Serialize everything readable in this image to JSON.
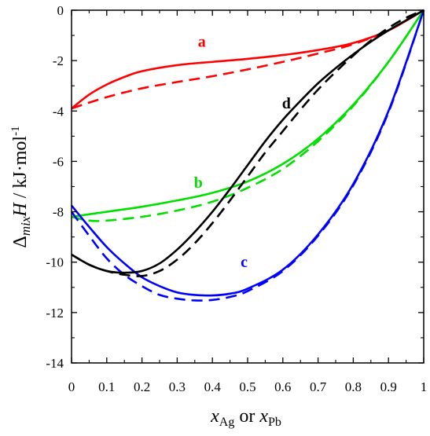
{
  "chart_data": {
    "type": "line",
    "xlabel_parts": {
      "x1": "x",
      "sub1": "Ag",
      "mid": " or ",
      "x2": "x",
      "sub2": "Pb"
    },
    "ylabel_parts": {
      "delta": "Δ",
      "sub": "mix",
      "h": "H",
      "rest": " / kJ·mol",
      "sup": "-1"
    },
    "xlim": [
      0,
      1
    ],
    "ylim": [
      -14,
      0
    ],
    "xticks": [
      0,
      0.1,
      0.2,
      0.3,
      0.4,
      0.5,
      0.6,
      0.7,
      0.8,
      0.9,
      1
    ],
    "xtick_labels": [
      "0",
      "0.1",
      "0.2",
      "0.3",
      "0.4",
      "0.5",
      "0.6",
      "0.7",
      "0.8",
      "0.9",
      "1"
    ],
    "yticks": [
      0,
      -2,
      -4,
      -6,
      -8,
      -10,
      -12,
      -14
    ],
    "ytick_labels": [
      "0",
      "-2",
      "-4",
      "-6",
      "-8",
      "-10",
      "-12",
      "-14"
    ],
    "grid": false,
    "series": [
      {
        "name": "a",
        "color": "#ff0000",
        "style": "solid",
        "label_at": [
          0.37,
          -1.45
        ],
        "x": [
          0,
          0.05,
          0.1,
          0.15,
          0.2,
          0.3,
          0.4,
          0.5,
          0.6,
          0.7,
          0.8,
          0.9,
          1
        ],
        "y": [
          -3.9,
          -3.35,
          -2.95,
          -2.65,
          -2.42,
          -2.18,
          -2.05,
          -1.93,
          -1.78,
          -1.58,
          -1.3,
          -0.8,
          0
        ]
      },
      {
        "name": "",
        "color": "#ff0000",
        "style": "dashed",
        "x": [
          0,
          0.1,
          0.2,
          0.3,
          0.4,
          0.5,
          0.6,
          0.7,
          0.8,
          0.9,
          1
        ],
        "y": [
          -3.9,
          -3.45,
          -3.1,
          -2.85,
          -2.62,
          -2.35,
          -2.05,
          -1.72,
          -1.35,
          -0.8,
          0
        ]
      },
      {
        "name": "b",
        "color": "#00e000",
        "style": "solid",
        "label_at": [
          0.36,
          -7.05
        ],
        "x": [
          0,
          0.1,
          0.2,
          0.3,
          0.4,
          0.5,
          0.6,
          0.7,
          0.8,
          0.9,
          1
        ],
        "y": [
          -8.2,
          -8.0,
          -7.8,
          -7.55,
          -7.25,
          -6.8,
          -6.1,
          -5.1,
          -3.75,
          -2.05,
          0
        ]
      },
      {
        "name": "",
        "color": "#00e000",
        "style": "dashed",
        "x": [
          0,
          0.05,
          0.1,
          0.2,
          0.3,
          0.4,
          0.5,
          0.6,
          0.7,
          0.8,
          0.9,
          1
        ],
        "y": [
          -8.2,
          -8.35,
          -8.35,
          -8.2,
          -7.95,
          -7.6,
          -7.05,
          -6.3,
          -5.2,
          -3.8,
          -2.05,
          0
        ]
      },
      {
        "name": "c",
        "color": "#0000ff",
        "style": "solid",
        "label_at": [
          0.49,
          -10.2
        ],
        "x": [
          0,
          0.05,
          0.1,
          0.15,
          0.2,
          0.25,
          0.3,
          0.35,
          0.4,
          0.45,
          0.5,
          0.6,
          0.7,
          0.8,
          0.9,
          1
        ],
        "y": [
          -7.75,
          -8.6,
          -9.4,
          -10.05,
          -10.6,
          -10.95,
          -11.2,
          -11.3,
          -11.32,
          -11.25,
          -11.05,
          -10.3,
          -8.9,
          -6.9,
          -4.0,
          0
        ]
      },
      {
        "name": "",
        "color": "#0000ff",
        "style": "dashed",
        "x": [
          0,
          0.05,
          0.1,
          0.15,
          0.2,
          0.25,
          0.3,
          0.35,
          0.4,
          0.45,
          0.5,
          0.6,
          0.7,
          0.8,
          0.9,
          1
        ],
        "y": [
          -8.0,
          -8.95,
          -9.85,
          -10.5,
          -10.95,
          -11.3,
          -11.45,
          -11.52,
          -11.5,
          -11.38,
          -11.15,
          -10.35,
          -8.95,
          -6.95,
          -4.05,
          0
        ]
      },
      {
        "name": "d",
        "color": "#000000",
        "style": "solid",
        "label_at": [
          0.61,
          -3.9
        ],
        "x": [
          0,
          0.05,
          0.1,
          0.15,
          0.2,
          0.25,
          0.3,
          0.35,
          0.4,
          0.45,
          0.5,
          0.55,
          0.6,
          0.65,
          0.7,
          0.75,
          0.8,
          0.85,
          0.9,
          0.95,
          1
        ],
        "y": [
          -9.7,
          -10.1,
          -10.35,
          -10.42,
          -10.35,
          -10.05,
          -9.5,
          -8.8,
          -8.0,
          -7.1,
          -6.15,
          -5.2,
          -4.35,
          -3.6,
          -2.9,
          -2.3,
          -1.75,
          -1.25,
          -0.8,
          -0.4,
          0
        ]
      },
      {
        "name": "",
        "color": "#000000",
        "style": "dashed",
        "x": [
          0,
          0.05,
          0.1,
          0.15,
          0.2,
          0.25,
          0.3,
          0.35,
          0.4,
          0.45,
          0.5,
          0.55,
          0.6,
          0.65,
          0.7,
          0.75,
          0.8,
          0.85,
          0.9,
          0.95,
          1
        ],
        "y": [
          -9.7,
          -10.1,
          -10.35,
          -10.5,
          -10.55,
          -10.35,
          -9.9,
          -9.25,
          -8.45,
          -7.55,
          -6.6,
          -5.65,
          -4.8,
          -3.95,
          -3.15,
          -2.45,
          -1.8,
          -1.2,
          -0.7,
          -0.3,
          0
        ]
      }
    ]
  }
}
